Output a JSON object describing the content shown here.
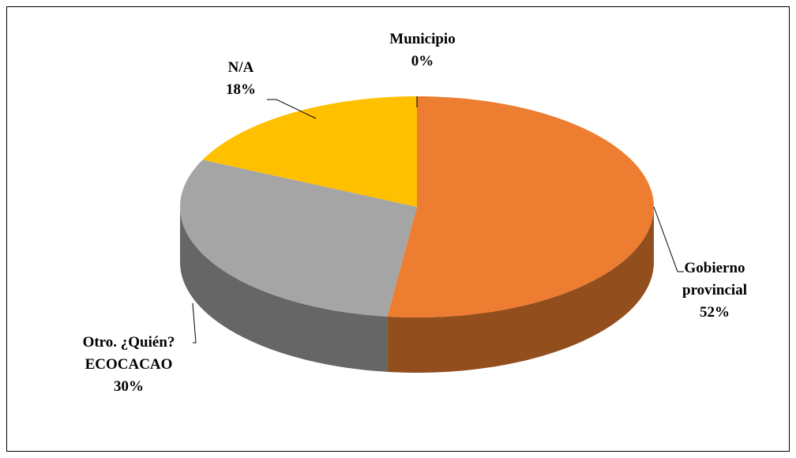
{
  "chart_data": {
    "type": "pie",
    "categories": [
      "Municipio",
      "Gobierno provincial",
      "Otro. ¿Quién? ECOCACAO",
      "N/A"
    ],
    "values": [
      0,
      52,
      30,
      18
    ],
    "value_labels": [
      "0%",
      "52%",
      "30%",
      "18%"
    ],
    "colors": [
      "#4472c4",
      "#ed7d31",
      "#a5a5a5",
      "#ffc000"
    ]
  }
}
